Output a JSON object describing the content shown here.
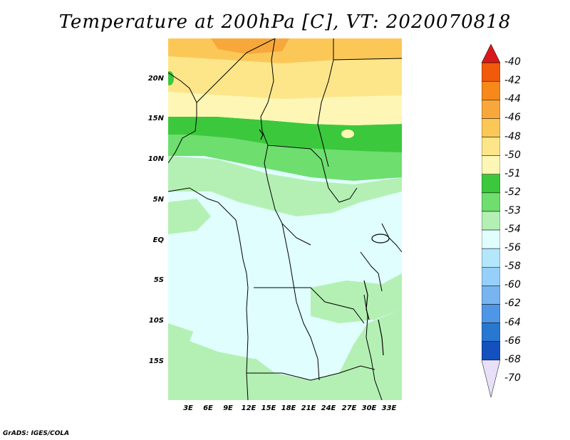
{
  "title": "Temperature at 200hPa [C], VT: 2020070818",
  "map": {
    "lat_labels": [
      "20N",
      "15N",
      "10N",
      "5N",
      "EQ",
      "5S",
      "10S",
      "15S"
    ],
    "lon_labels": [
      "3E",
      "6E",
      "9E",
      "12E",
      "15E",
      "18E",
      "21E",
      "24E",
      "27E",
      "30E",
      "33E"
    ]
  },
  "legend": {
    "labels": [
      "-40",
      "-42",
      "-44",
      "-46",
      "-48",
      "-50",
      "-51",
      "-52",
      "-53",
      "-54",
      "-56",
      "-58",
      "-60",
      "-62",
      "-64",
      "-66",
      "-68",
      "-70"
    ],
    "colors": [
      "#d7191c",
      "#f05a0a",
      "#f7891b",
      "#f8a83b",
      "#fbc858",
      "#fde68a",
      "#fef6b4",
      "#3cc83c",
      "#6ede6e",
      "#b4f0b4",
      "#e0fefe",
      "#b4e6fc",
      "#96d0fa",
      "#78b4f0",
      "#5096e6",
      "#2878d2",
      "#1450be",
      "#0a1478"
    ]
  },
  "credit": "GrADS: IGES/COLA"
}
